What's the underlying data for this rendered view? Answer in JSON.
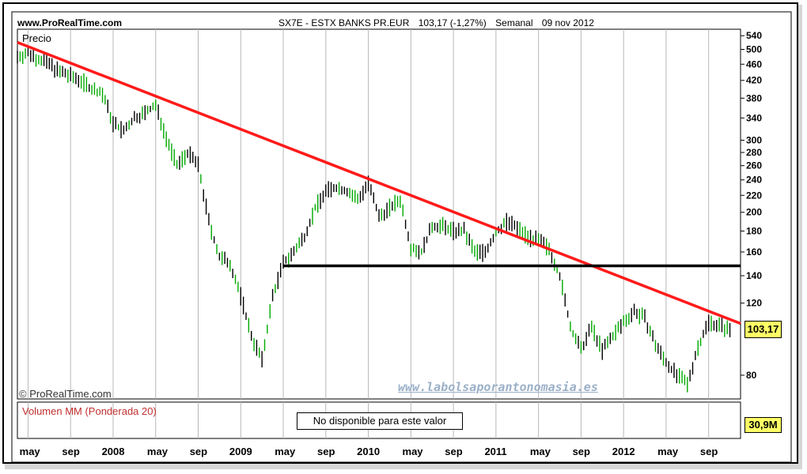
{
  "header": {
    "site": "www.ProRealTime.com",
    "symbol": "SX7E - ESTX BANKS PR.EUR",
    "quote": "103,17 (-1,27%)",
    "period": "Semanal",
    "date": "09 nov 2012"
  },
  "labels": {
    "price_panel": "Precio",
    "volume_panel": "Volumen MM (Ponderada 20)",
    "volume_message": "No disponible para este valor",
    "copyright": "© ProRealTime.com",
    "watermark": "www.labolsaporantonomasia.es",
    "last_price": "103,17",
    "last_volume": "30,9M"
  },
  "colors": {
    "background": "#ffffff",
    "frame": "#000000",
    "bars": "#000000",
    "up_tick": "#00aa00",
    "trendline": "#ff1a1a",
    "support": "#000000",
    "grid": "#b8b8b8",
    "highlight": "#ffff66"
  },
  "chart_data": {
    "type": "line",
    "scale": "log",
    "ylim": [
      70,
      560
    ],
    "y_ticks": [
      80,
      120,
      140,
      160,
      180,
      200,
      220,
      240,
      260,
      280,
      300,
      340,
      380,
      420,
      460,
      500,
      540
    ],
    "x_labels": [
      "may",
      "sep",
      "2008",
      "may",
      "sep",
      "2009",
      "may",
      "sep",
      "2010",
      "may",
      "sep",
      "2011",
      "may",
      "sep",
      "2012",
      "may",
      "sep"
    ],
    "x_dates": [
      "2007-05",
      "2007-09",
      "2008-01",
      "2008-05",
      "2008-09",
      "2009-01",
      "2009-05",
      "2009-09",
      "2010-01",
      "2010-05",
      "2010-09",
      "2011-01",
      "2011-05",
      "2011-09",
      "2012-01",
      "2012-05",
      "2012-09"
    ],
    "x_range": [
      "2007-04",
      "2012-12"
    ],
    "series": [
      {
        "values": [
          [
            "2007-04",
            480
          ],
          [
            "2007-05",
            490
          ],
          [
            "2007-06",
            475
          ],
          [
            "2007-07",
            460
          ],
          [
            "2007-08",
            440
          ],
          [
            "2007-09",
            430
          ],
          [
            "2007-10",
            420
          ],
          [
            "2007-11",
            400
          ],
          [
            "2007-12",
            390
          ],
          [
            "2008-01",
            330
          ],
          [
            "2008-02",
            315
          ],
          [
            "2008-03",
            340
          ],
          [
            "2008-04",
            350
          ],
          [
            "2008-05",
            365
          ],
          [
            "2008-06",
            305
          ],
          [
            "2008-07",
            260
          ],
          [
            "2008-08",
            280
          ],
          [
            "2008-09",
            260
          ],
          [
            "2008-10",
            190
          ],
          [
            "2008-11",
            155
          ],
          [
            "2008-12",
            150
          ],
          [
            "2009-01",
            125
          ],
          [
            "2009-02",
            100
          ],
          [
            "2009-03",
            87
          ],
          [
            "2009-04",
            125
          ],
          [
            "2009-05",
            150
          ],
          [
            "2009-06",
            160
          ],
          [
            "2009-07",
            175
          ],
          [
            "2009-08",
            205
          ],
          [
            "2009-09",
            225
          ],
          [
            "2009-10",
            230
          ],
          [
            "2009-11",
            225
          ],
          [
            "2009-12",
            215
          ],
          [
            "2010-01",
            235
          ],
          [
            "2010-02",
            195
          ],
          [
            "2010-03",
            205
          ],
          [
            "2010-04",
            215
          ],
          [
            "2010-05",
            165
          ],
          [
            "2010-06",
            160
          ],
          [
            "2010-07",
            185
          ],
          [
            "2010-08",
            185
          ],
          [
            "2010-09",
            180
          ],
          [
            "2010-10",
            180
          ],
          [
            "2010-11",
            160
          ],
          [
            "2010-12",
            160
          ],
          [
            "2011-01",
            178
          ],
          [
            "2011-02",
            190
          ],
          [
            "2011-03",
            183
          ],
          [
            "2011-04",
            175
          ],
          [
            "2011-05",
            170
          ],
          [
            "2011-06",
            163
          ],
          [
            "2011-07",
            140
          ],
          [
            "2011-08",
            105
          ],
          [
            "2011-09",
            92
          ],
          [
            "2011-10",
            105
          ],
          [
            "2011-11",
            92
          ],
          [
            "2011-12",
            100
          ],
          [
            "2012-01",
            108
          ],
          [
            "2012-02",
            115
          ],
          [
            "2012-03",
            110
          ],
          [
            "2012-04",
            95
          ],
          [
            "2012-05",
            86
          ],
          [
            "2012-06",
            80
          ],
          [
            "2012-07",
            76
          ],
          [
            "2012-08",
            94
          ],
          [
            "2012-09",
            108
          ],
          [
            "2012-10",
            106
          ],
          [
            "2012-11",
            103.17
          ]
        ]
      }
    ],
    "trendline": [
      [
        "2007-04",
        520
      ],
      [
        "2012-12",
        107
      ]
    ],
    "support": [
      [
        "2009-05",
        148
      ],
      [
        "2012-12",
        148
      ]
    ]
  }
}
